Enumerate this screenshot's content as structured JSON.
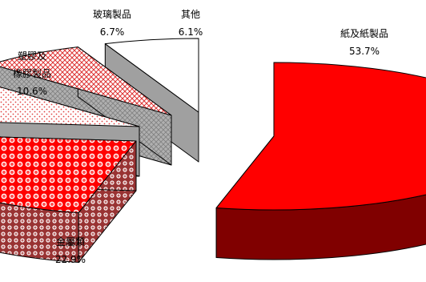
{
  "chart_data": {
    "type": "pie",
    "style": "3d-exploded",
    "categories": [
      "紙及紙製品",
      "金屬類",
      "塑膠及橡膠製品",
      "玻璃製品",
      "其他"
    ],
    "values": [
      53.7,
      22.9,
      10.6,
      6.7,
      6.1
    ],
    "unit": "%",
    "labels": [
      {
        "name": [
          "紙及紙製品"
        ],
        "value": "53.7%"
      },
      {
        "name": [
          "金屬類"
        ],
        "value": "22.9%"
      },
      {
        "name": [
          "塑膠及",
          "橡膠製品"
        ],
        "value": "10.6%"
      },
      {
        "name": [
          "玻璃製品"
        ],
        "value": "6.7%"
      },
      {
        "name": [
          "其他"
        ],
        "value": "6.1%"
      }
    ],
    "colors": {
      "paper_top": "#ff0000",
      "paper_side": "#800000",
      "metal_top": "#ff0000",
      "metal_side": "#993333",
      "plastic_top": "#ffcccc",
      "plastic_side": "#a0a0a0",
      "glass_top": "#ff9999",
      "glass_side": "#a0a0a0",
      "other_top": "#ffffff",
      "other_side": "#a0a0a0"
    },
    "legend": "none"
  }
}
